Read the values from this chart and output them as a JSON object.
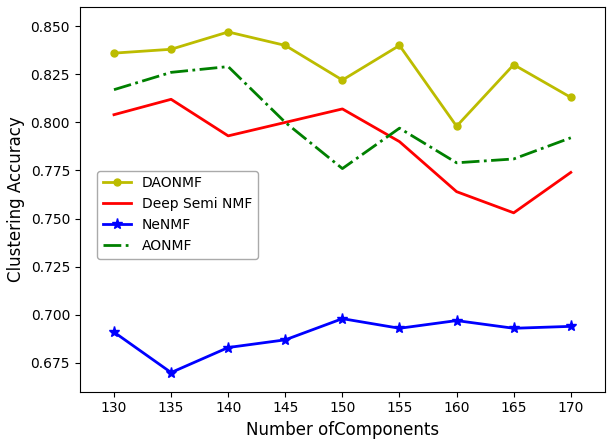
{
  "x": [
    130,
    135,
    140,
    145,
    150,
    155,
    160,
    165,
    170
  ],
  "DAONMF": [
    0.836,
    0.838,
    0.847,
    0.84,
    0.822,
    0.84,
    0.798,
    0.83,
    0.813
  ],
  "DeepSemiNMF": [
    0.804,
    0.812,
    0.793,
    0.8,
    0.807,
    0.79,
    0.764,
    0.753,
    0.774
  ],
  "NeNMF": [
    0.691,
    0.67,
    0.683,
    0.687,
    0.698,
    0.693,
    0.697,
    0.693,
    0.694
  ],
  "AONMF": [
    0.817,
    0.826,
    0.829,
    0.8,
    0.776,
    0.797,
    0.779,
    0.781,
    0.792
  ],
  "DAONMF_color": "#bcbc00",
  "DeepSemiNMF_color": "#ff0000",
  "NeNMF_color": "#0000ff",
  "AONMF_color": "#008000",
  "ylabel": "Clustering Accuracy",
  "ylim": [
    0.66,
    0.86
  ],
  "xlim": [
    127,
    173
  ],
  "yticks": [
    0.675,
    0.7,
    0.725,
    0.75,
    0.775,
    0.8,
    0.825,
    0.85
  ],
  "xticks": [
    130,
    135,
    140,
    145,
    150,
    155,
    160,
    165,
    170
  ],
  "legend_labels": [
    "DAONMF",
    "Deep Semi NMF",
    "NeNMF",
    "AONMF"
  ]
}
